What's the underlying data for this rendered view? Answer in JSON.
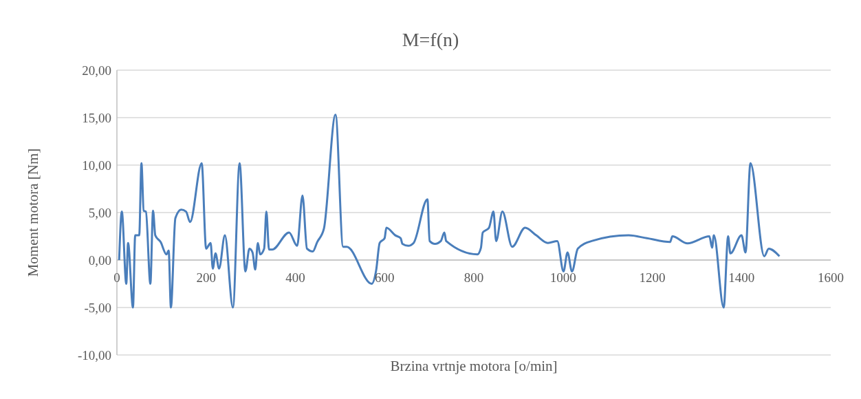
{
  "chart_data": {
    "type": "line",
    "title": "M=f(n)",
    "xlabel": "Brzina vrtnje motora [o/min]",
    "ylabel": "Moment motora [Nm]",
    "xlim": [
      0,
      1600
    ],
    "xticks": [
      0,
      200,
      400,
      600,
      800,
      1000,
      1200,
      1400,
      1600
    ],
    "ylim": [
      -10,
      20
    ],
    "yticks": [
      {
        "value": -10,
        "label": "-10,00"
      },
      {
        "value": -5,
        "label": "-5,00"
      },
      {
        "value": 0,
        "label": "0,00"
      },
      {
        "value": 5,
        "label": "5,00"
      },
      {
        "value": 10,
        "label": "10,00"
      },
      {
        "value": 15,
        "label": "15,00"
      },
      {
        "value": 20,
        "label": "20,00"
      }
    ],
    "grid": "y",
    "marker": "none",
    "line_style": "solid",
    "series": [
      {
        "color": "#4a7ebb",
        "x": [
          5,
          11,
          21,
          25,
          36,
          41,
          50,
          55,
          60,
          65,
          75,
          81,
          86,
          98,
          111,
          116,
          121,
          131,
          144,
          155,
          164,
          190,
          200,
          210,
          215,
          221,
          229,
          242,
          260,
          275,
          288,
          297,
          304,
          310,
          316,
          321,
          330,
          335,
          341,
          348,
          386,
          404,
          416,
          426,
          439,
          449,
          464,
          490,
          507,
          515,
          571,
          581,
          589,
          600,
          604,
          624,
          636,
          640,
          653,
          665,
          696,
          701,
          713,
          726,
          734,
          738,
          808,
          816,
          820,
          834,
          844,
          850,
          864,
          886,
          915,
          940,
          966,
          987,
          1001,
          1010,
          1020,
          1033,
          1064,
          1147,
          1188,
          1240,
          1245,
          1279,
          1328,
          1334,
          1338,
          1360,
          1370,
          1375,
          1400,
          1409,
          1420,
          1451,
          1461,
          1485
        ],
        "values": [
          0,
          5.1,
          -2.5,
          1.8,
          -5,
          2.6,
          2.6,
          10.2,
          5.2,
          5.1,
          -2.5,
          5.2,
          2.6,
          1.9,
          0.6,
          1,
          -5,
          4.4,
          5.3,
          5.1,
          4,
          10.2,
          1.2,
          1.8,
          -0.9,
          0.7,
          -0.9,
          2.6,
          -5,
          10.2,
          -1.2,
          1.2,
          0.8,
          -1,
          1.8,
          0.6,
          1.2,
          5.1,
          1.1,
          1.1,
          2.9,
          1.5,
          6.8,
          1.2,
          0.9,
          1.9,
          3.3,
          15.3,
          1.4,
          1.4,
          -2.5,
          -1.1,
          1.8,
          2.3,
          3.4,
          2.6,
          2.3,
          1.7,
          1.5,
          1.8,
          6.4,
          2,
          1.7,
          2,
          2.9,
          2,
          0.6,
          1.3,
          2.9,
          3.4,
          5.1,
          2,
          5.1,
          1.4,
          3.4,
          2.6,
          1.8,
          2,
          -1.2,
          0.8,
          -1.2,
          1.2,
          2,
          2.6,
          2.3,
          1.9,
          2.5,
          1.75,
          2.5,
          1.3,
          2.6,
          -5,
          2.5,
          0.7,
          2.6,
          0.8,
          10.2,
          0.4,
          1.2,
          0.4
        ]
      }
    ]
  }
}
